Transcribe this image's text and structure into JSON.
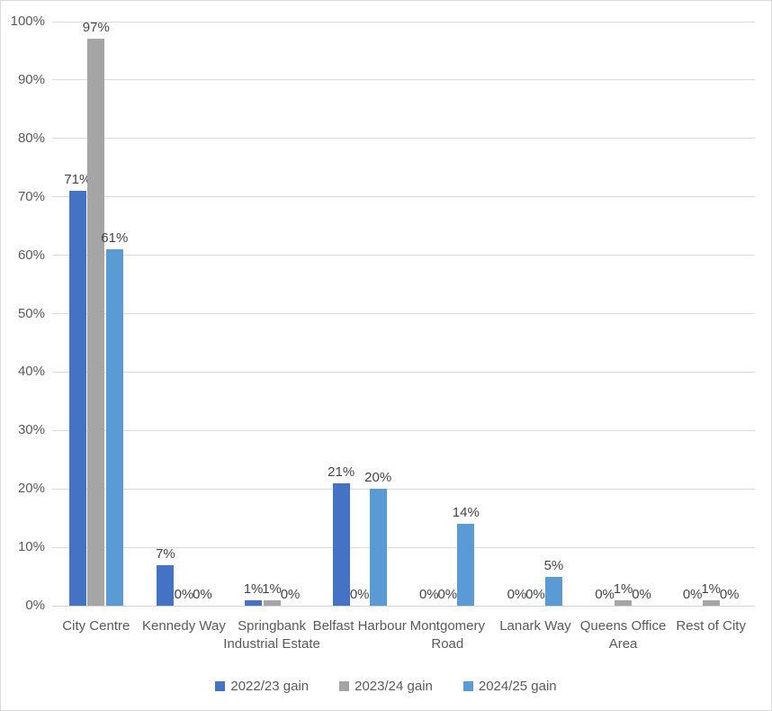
{
  "chart_data": {
    "type": "bar",
    "title": "",
    "xlabel": "",
    "ylabel": "",
    "categories": [
      "City Centre",
      "Kennedy Way",
      "Springbank Industrial Estate",
      "Belfast Harbour",
      "Montgomery Road",
      "Lanark Way",
      "Queens Office Area",
      "Rest of City"
    ],
    "series": [
      {
        "name": "2022/23 gain",
        "color": "#4472C4",
        "values": [
          71,
          7,
          1,
          21,
          0,
          0,
          0,
          0
        ]
      },
      {
        "name": "2023/24 gain",
        "color": "#A5A5A5",
        "values": [
          97,
          0,
          1,
          0,
          0,
          0,
          1,
          1
        ]
      },
      {
        "name": "2024/25 gain",
        "color": "#5B9BD5",
        "values": [
          61,
          0,
          0,
          20,
          14,
          5,
          0,
          0
        ]
      }
    ],
    "value_suffix": "%",
    "data_labels": true,
    "ylim": [
      0,
      100
    ],
    "ytick_step": 10,
    "ytick_labels": [
      "0%",
      "10%",
      "20%",
      "30%",
      "40%",
      "50%",
      "60%",
      "70%",
      "80%",
      "90%",
      "100%"
    ],
    "grid": true,
    "legend_position": "bottom",
    "colors": {
      "gridline": "#D9D9D9",
      "axis_line": "#D3D3D3",
      "axis_text": "#595959",
      "data_label_text": "#444444",
      "frame_border": "#D9D9D9",
      "background": "#FFFFFF"
    }
  }
}
